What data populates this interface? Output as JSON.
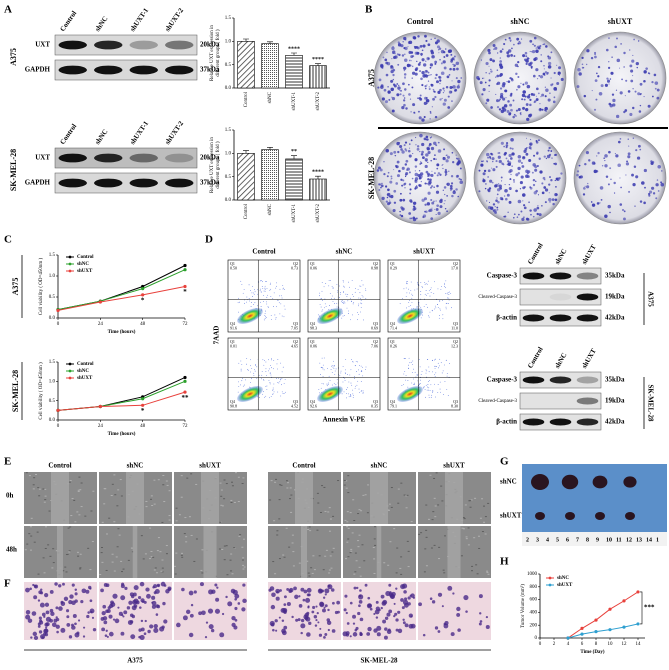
{
  "panel_letters": [
    "A",
    "B",
    "C",
    "D",
    "E",
    "F",
    "G",
    "H"
  ],
  "panel_a": {
    "lanes": [
      "Control",
      "shNC",
      "shUXT-1",
      "shUXT-2"
    ],
    "bands": [
      "UXT",
      "GAPDH"
    ],
    "band_sizes": [
      "20kDa",
      "37kDa"
    ],
    "cell_lines": [
      "A375",
      "SK-MEL-28"
    ],
    "charts": [
      {
        "type": "bar",
        "ylabel": [
          "Relative UXT expression in",
          "different groups ( fold )"
        ],
        "categories": [
          "Control",
          "shNC",
          "shUXT-1",
          "shUXT-2"
        ],
        "values": [
          1.0,
          0.95,
          0.7,
          0.48
        ],
        "errors": [
          0.05,
          0.04,
          0.05,
          0.04
        ],
        "significance": [
          null,
          null,
          "****",
          "****"
        ],
        "ylim": [
          0,
          1.5
        ],
        "yticks": [
          {
            "value": 0,
            "label": "0.0"
          },
          0.5,
          {
            "value": 1,
            "label": "1.0"
          },
          1.5
        ]
      },
      {
        "type": "bar",
        "ylabel": [
          "Relative UXT expression in",
          "different groups ( fold )"
        ],
        "categories": [
          "Control",
          "shNC",
          "shUXT-1",
          "shUXT-2"
        ],
        "values": [
          1.0,
          1.08,
          0.88,
          0.45
        ],
        "errors": [
          0.06,
          0.05,
          0.07,
          0.06
        ],
        "significance": [
          null,
          null,
          "**",
          "****"
        ],
        "ylim": [
          0,
          1.5
        ],
        "yticks": [
          {
            "value": 0,
            "label": "0.0"
          },
          0.5,
          {
            "value": 1,
            "label": "1.0"
          },
          1.5
        ]
      }
    ]
  },
  "panel_b": {
    "columns": [
      "Control",
      "shNC",
      "shUXT"
    ],
    "rows": [
      "A375",
      "SK-MEL-28"
    ]
  },
  "panel_c": {
    "cell_lines": [
      "A375",
      "SK-MEL-28"
    ],
    "charts": [
      {
        "type": "line",
        "xlabel": "Time (hours)",
        "ylabel": "Cell viability ( OD=450nm )",
        "x": [
          0,
          24,
          48,
          72
        ],
        "xlim": [
          0,
          72
        ],
        "xticks": [
          0,
          24,
          48,
          72
        ],
        "ylim": [
          0,
          1.5
        ],
        "yticks": [
          {
            "value": 0,
            "label": "0.0"
          },
          0.5,
          {
            "value": 1,
            "label": "1.0"
          },
          1.5
        ],
        "series": [
          {
            "name": "Control",
            "color": "#000000",
            "values": [
              0.2,
              0.4,
              0.75,
              1.25
            ]
          },
          {
            "name": "shNC",
            "color": "#2ca02c",
            "values": [
              0.2,
              0.4,
              0.7,
              1.15
            ]
          },
          {
            "name": "shUXT",
            "color": "#e8413c",
            "values": [
              0.18,
              0.38,
              0.55,
              0.75
            ]
          }
        ],
        "significance": [
          null,
          null,
          "*",
          "*"
        ]
      },
      {
        "type": "line",
        "xlabel": "Time (hours)",
        "ylabel": "Cell viability ( OD=450nm )",
        "x": [
          0,
          24,
          48,
          72
        ],
        "xlim": [
          0,
          72
        ],
        "xticks": [
          0,
          24,
          48,
          72
        ],
        "ylim": [
          0,
          1.5
        ],
        "yticks": [
          {
            "value": 0,
            "label": "0.0"
          },
          0.5,
          {
            "value": 1,
            "label": "1.0"
          },
          1.5
        ],
        "series": [
          {
            "name": "Control",
            "color": "#000000",
            "values": [
              0.25,
              0.35,
              0.6,
              1.1
            ]
          },
          {
            "name": "shNC",
            "color": "#2ca02c",
            "values": [
              0.25,
              0.35,
              0.55,
              1.0
            ]
          },
          {
            "name": "shUXT",
            "color": "#e8413c",
            "values": [
              0.25,
              0.35,
              0.38,
              0.72
            ]
          }
        ],
        "significance": [
          null,
          null,
          "*",
          "**"
        ]
      }
    ]
  },
  "panel_d": {
    "columns": [
      "Control",
      "shNC",
      "shUXT"
    ],
    "ylabel": "7AAD",
    "xlabel": "Annexin V-PE",
    "gates": [
      "Q1",
      "Q2",
      "Q3",
      "Q4"
    ],
    "plots": [
      [
        [
          "0.50",
          "0.73",
          "7.05",
          "91.6"
        ],
        [
          "0.06",
          "0.98",
          "0.69",
          "98.3"
        ],
        [
          "0.29",
          "17.0",
          "11.0",
          "71.4"
        ]
      ],
      [
        [
          "0.01",
          "4.65",
          "4.52",
          "90.8"
        ],
        [
          "0.06",
          "7.06",
          "0.35",
          "92.6"
        ],
        [
          "0.26",
          "12.3",
          "8.30",
          "79.1"
        ]
      ]
    ],
    "western": {
      "lanes": [
        "Control",
        "shNC",
        "shUXT"
      ],
      "bands": [
        "Caspase-3",
        "Cleaved-Caspase-3",
        "β-actin"
      ],
      "band_sizes": [
        "35kDa",
        "19kDa",
        "42kDa"
      ],
      "cell_lines": [
        "A375",
        "SK-MEL-28"
      ]
    }
  },
  "panel_e": {
    "times": [
      "0h",
      "48h"
    ],
    "columns": [
      "Control",
      "shNC",
      "shUXT"
    ],
    "cell_lines": [
      "A375",
      "SK-MEL-28"
    ]
  },
  "panel_g": {
    "groups": [
      "shNC",
      "shUXT"
    ],
    "ruler": [
      "2",
      "3",
      "4",
      "5",
      "6",
      "7",
      "8",
      "9",
      "10",
      "11",
      "12",
      "13",
      "14",
      "1"
    ]
  },
  "panel_h": {
    "type": "line",
    "xlabel": "Time (Day)",
    "ylabel": "Tumor Volume (mm³)",
    "x": [
      4,
      6,
      8,
      10,
      12,
      14
    ],
    "xlim": [
      0,
      15
    ],
    "xticks": [
      0,
      2,
      4,
      6,
      8,
      10,
      12,
      14
    ],
    "ylim": [
      0,
      1000
    ],
    "yticks": [
      0,
      200,
      400,
      600,
      800,
      1000
    ],
    "series": [
      {
        "name": "shNC",
        "color": "#e8413c",
        "values": [
          0,
          150,
          280,
          450,
          580,
          720
        ]
      },
      {
        "name": "shUXT",
        "color": "#2e9fd0",
        "values": [
          0,
          60,
          100,
          130,
          170,
          220
        ]
      }
    ],
    "significance": "***"
  }
}
